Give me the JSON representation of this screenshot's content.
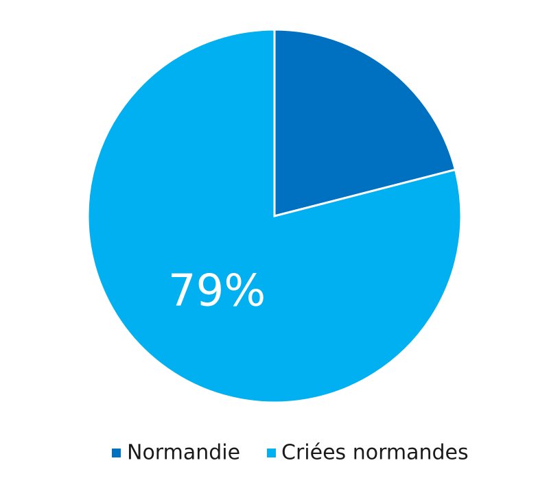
{
  "chart_data": {
    "type": "pie",
    "categories": [
      "Normandie",
      "Criées normandes"
    ],
    "values": [
      21,
      79
    ],
    "data_labels": [
      "",
      "79%"
    ],
    "colors": [
      "#0070c0",
      "#00b0f0"
    ],
    "start_angle_deg": 0,
    "direction": "clockwise",
    "legend": {
      "position": "bottom",
      "entries": [
        "Normandie",
        "Criées normandes"
      ]
    },
    "title": ""
  }
}
